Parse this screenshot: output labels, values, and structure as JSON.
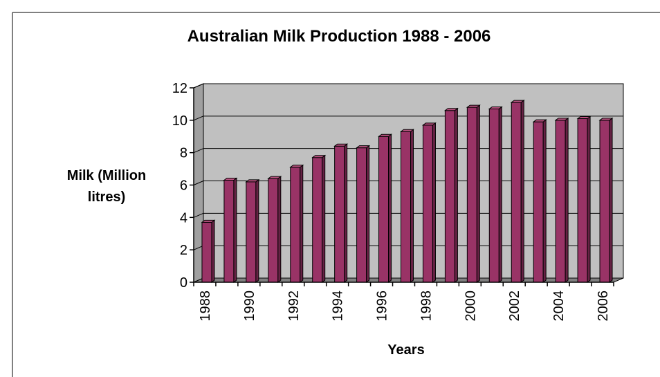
{
  "chart_data": {
    "type": "bar",
    "title": "Australian Milk Production 1988 - 2006",
    "xlabel": "Years",
    "ylabel_lines": [
      "Milk (Million",
      "litres)"
    ],
    "categories": [
      "1988",
      "1989",
      "1990",
      "1991",
      "1992",
      "1993",
      "1994",
      "1995",
      "1996",
      "1997",
      "1998",
      "1999",
      "2000",
      "2001",
      "2002",
      "2003",
      "2004",
      "2005",
      "2006"
    ],
    "x_tick_labels": [
      "1988",
      "",
      "1990",
      "",
      "1992",
      "",
      "1994",
      "",
      "1996",
      "",
      "1998",
      "",
      "2000",
      "",
      "2002",
      "",
      "2004",
      "",
      "2006"
    ],
    "values": [
      3.7,
      6.3,
      6.2,
      6.4,
      7.1,
      7.7,
      8.4,
      8.3,
      9.0,
      9.3,
      9.7,
      10.6,
      10.8,
      10.7,
      11.1,
      9.9,
      10.0,
      10.1,
      10.0
    ],
    "ylim": [
      0,
      12
    ],
    "y_ticks": [
      0,
      2,
      4,
      6,
      8,
      10,
      12
    ],
    "grid": true,
    "legend": "none",
    "colors": {
      "bar_front": "#993366",
      "bar_side": "#662244",
      "bar_top": "#b8527f",
      "plot_back": "#c0c0c0",
      "plot_floor": "#808080",
      "plot_wall": "#a0a0a0"
    }
  }
}
